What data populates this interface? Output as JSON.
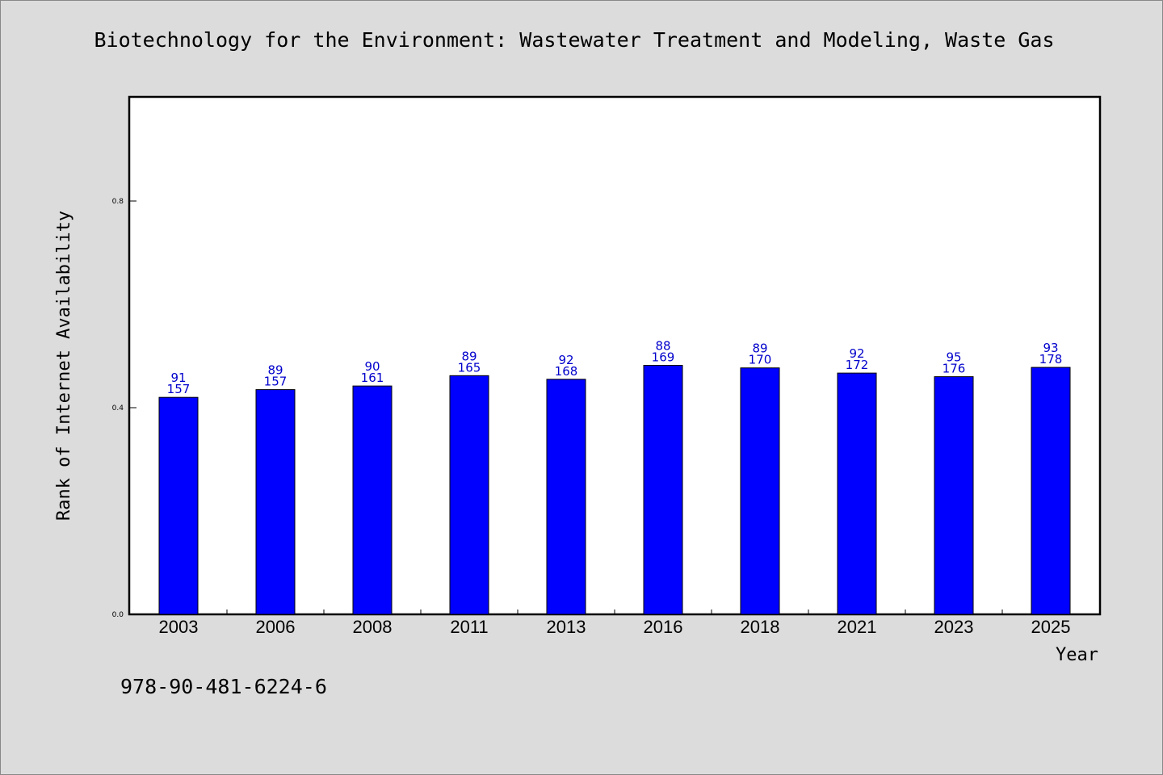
{
  "title": "Biotechnology for the Environment: Wastewater Treatment and Modeling, Waste Gas",
  "isbn": "978-90-481-6224-6",
  "colors": {
    "bar": "#0000ff",
    "label": "#0000cc",
    "background": "#dcdcdc",
    "plot_bg": "#ffffff"
  },
  "chart_data": {
    "type": "bar",
    "xlabel": "Year",
    "ylabel": "Rank of Internet Availability",
    "ylim": [
      0,
      1.0
    ],
    "yticks": [
      "0.0",
      "0.4",
      "0.8"
    ],
    "grid": false,
    "categories": [
      "2003",
      "2006",
      "2008",
      "2011",
      "2013",
      "2016",
      "2018",
      "2021",
      "2023",
      "2025"
    ],
    "values": [
      0.42,
      0.435,
      0.442,
      0.462,
      0.455,
      0.482,
      0.477,
      0.467,
      0.46,
      0.478
    ],
    "labels_top": [
      "91",
      "89",
      "90",
      "89",
      "92",
      "88",
      "89",
      "92",
      "95",
      "93"
    ],
    "labels_bottom": [
      "157",
      "157",
      "161",
      "165",
      "168",
      "169",
      "170",
      "172",
      "176",
      "178"
    ]
  }
}
